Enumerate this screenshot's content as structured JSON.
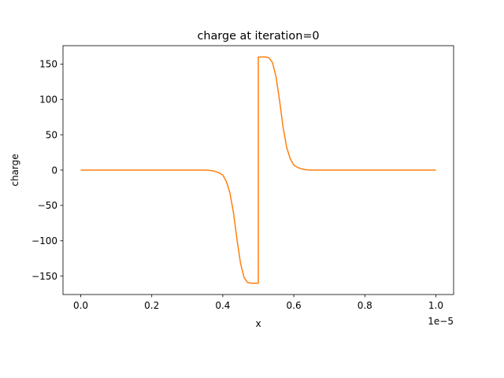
{
  "chart_data": {
    "type": "line",
    "title": "charge at iteration=0",
    "xlabel": "x",
    "ylabel": "charge",
    "x_offset_text": "1e−5",
    "x_scale": 1e-05,
    "xlim": [
      -0.05,
      1.05
    ],
    "ylim": [
      -176,
      176
    ],
    "xticks": [
      0.0,
      0.2,
      0.4,
      0.6,
      0.8,
      1.0
    ],
    "xtick_labels": [
      "0.0",
      "0.2",
      "0.4",
      "0.6",
      "0.8",
      "1.0"
    ],
    "yticks": [
      -150,
      -100,
      -50,
      0,
      50,
      100,
      150
    ],
    "ytick_labels": [
      "−150",
      "−100",
      "−50",
      "0",
      "50",
      "100",
      "150"
    ],
    "grid": false,
    "series": [
      {
        "color": "#ff7f0e",
        "points": [
          [
            0.0,
            0
          ],
          [
            0.05,
            0
          ],
          [
            0.1,
            0
          ],
          [
            0.15,
            0
          ],
          [
            0.2,
            0
          ],
          [
            0.25,
            0
          ],
          [
            0.3,
            0
          ],
          [
            0.35,
            0
          ],
          [
            0.36,
            -0.3
          ],
          [
            0.37,
            -0.8
          ],
          [
            0.38,
            -2
          ],
          [
            0.39,
            -4
          ],
          [
            0.4,
            -7
          ],
          [
            0.41,
            -16
          ],
          [
            0.42,
            -32
          ],
          [
            0.43,
            -60
          ],
          [
            0.44,
            -98
          ],
          [
            0.45,
            -132
          ],
          [
            0.46,
            -152
          ],
          [
            0.47,
            -159
          ],
          [
            0.48,
            -160
          ],
          [
            0.5,
            -160
          ],
          [
            0.5,
            160
          ],
          [
            0.52,
            160
          ],
          [
            0.53,
            159
          ],
          [
            0.54,
            152
          ],
          [
            0.55,
            132
          ],
          [
            0.56,
            98
          ],
          [
            0.57,
            60
          ],
          [
            0.58,
            32
          ],
          [
            0.59,
            16
          ],
          [
            0.6,
            7
          ],
          [
            0.61,
            4
          ],
          [
            0.62,
            2
          ],
          [
            0.63,
            0.8
          ],
          [
            0.64,
            0.3
          ],
          [
            0.65,
            0
          ],
          [
            0.7,
            0
          ],
          [
            0.8,
            0
          ],
          [
            0.9,
            0
          ],
          [
            1.0,
            0
          ]
        ]
      }
    ]
  }
}
